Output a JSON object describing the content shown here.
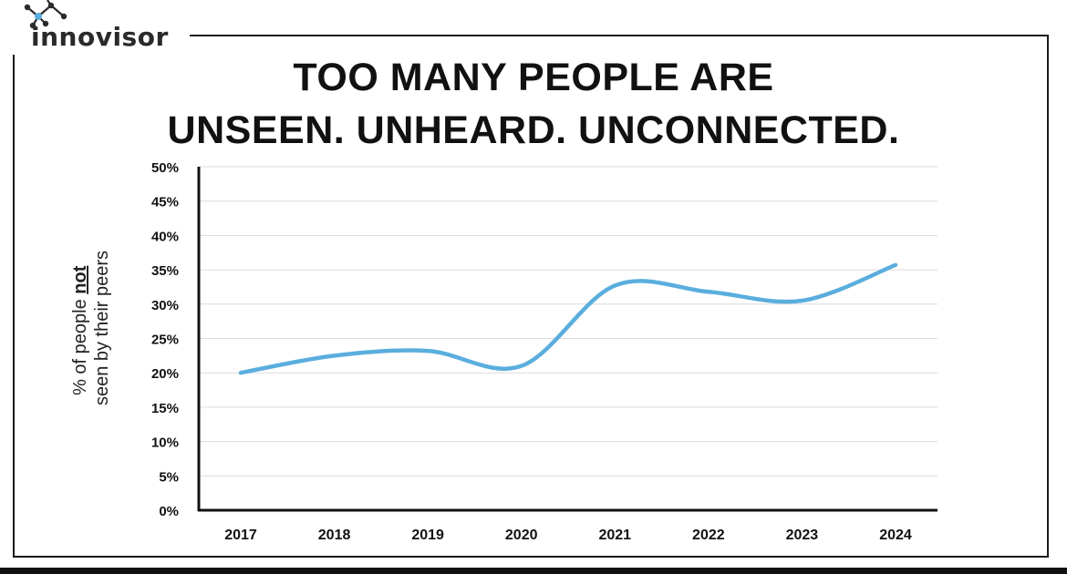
{
  "brand": {
    "name": "innovisor",
    "logo_icon": "network-nodes-icon",
    "accent_color": "#5aaede"
  },
  "title_line1": "TOO MANY PEOPLE ARE",
  "title_line2": "UNSEEN. UNHEARD. UNCONNECTED.",
  "chart_data": {
    "type": "line",
    "title": "TOO MANY PEOPLE ARE UNSEEN. UNHEARD. UNCONNECTED.",
    "xlabel": "",
    "ylabel_parts": [
      "% of people ",
      "not",
      "seen by their peers"
    ],
    "categories": [
      "2017",
      "2018",
      "2019",
      "2020",
      "2021",
      "2022",
      "2023",
      "2024"
    ],
    "y_ticks": [
      "0%",
      "5%",
      "10%",
      "15%",
      "20%",
      "25%",
      "30%",
      "35%",
      "40%",
      "45%",
      "50%"
    ],
    "ylim": [
      0,
      50
    ],
    "series": [
      {
        "values": [
          20,
          22.5,
          23.2,
          21,
          32.7,
          31.8,
          30.5,
          35.7
        ],
        "color": "#5aaede"
      }
    ],
    "grid": true,
    "legend": "none"
  }
}
